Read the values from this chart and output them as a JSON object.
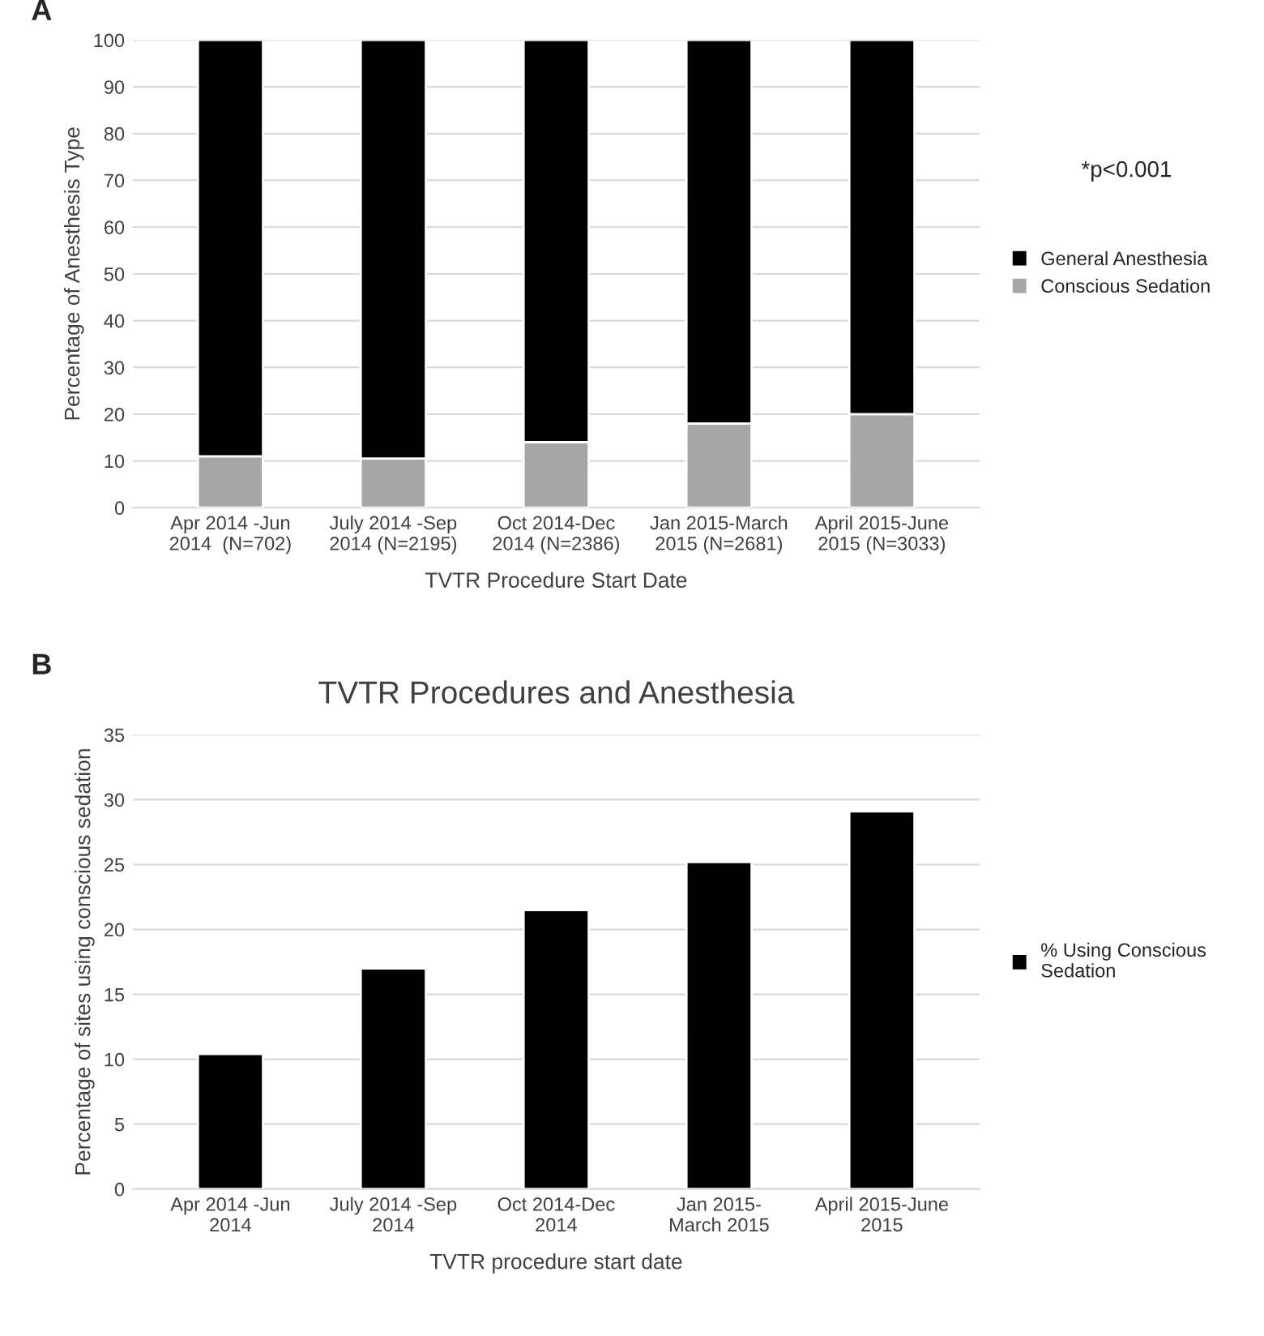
{
  "chart_data": [
    {
      "type": "bar",
      "stacked": true,
      "categories": [
        "Apr 2014 -Jun\n2014  (N=702)",
        "July 2014 -Sep\n2014 (N=2195)",
        "Oct 2014-Dec\n2014 (N=2386)",
        "Jan 2015-March\n2015 (N=2681)",
        "April 2015-June\n2015 (N=3033)"
      ],
      "series": [
        {
          "name": "Conscious Sedation",
          "color": "#a6a6a6",
          "values": [
            11,
            10.5,
            14,
            18,
            20
          ]
        },
        {
          "name": "General Anesthesia",
          "color": "#000000",
          "values": [
            89,
            89.5,
            86,
            82,
            80
          ]
        }
      ],
      "xlabel": "TVTR Procedure Start Date",
      "ylabel": "Percentage of Anesthesis Type",
      "ylim": [
        0,
        100
      ],
      "yticks": [
        0,
        10,
        20,
        30,
        40,
        50,
        60,
        70,
        80,
        90,
        100
      ],
      "grid": "y",
      "legend": "right",
      "annotations": [
        "A",
        "*p<0.001"
      ]
    },
    {
      "type": "bar",
      "title": "TVTR Procedures and Anesthesia",
      "categories": [
        "Apr 2014 -Jun\n2014",
        "July 2014 -Sep\n2014",
        "Oct 2014-Dec\n2014",
        "Jan 2015-\nMarch 2015",
        "April 2015-June\n2015"
      ],
      "series": [
        {
          "name": "% Using Conscious\nSedation",
          "color": "#000000",
          "values": [
            10.4,
            17.0,
            21.5,
            25.2,
            29.1
          ]
        }
      ],
      "xlabel": "TVTR procedure start date",
      "ylabel": "Percentage of sites using conscious sedation",
      "ylim": [
        0,
        35
      ],
      "yticks": [
        0,
        5,
        10,
        15,
        20,
        25,
        30,
        35
      ],
      "grid": "y",
      "legend": "right",
      "annotations": [
        "B"
      ]
    }
  ]
}
